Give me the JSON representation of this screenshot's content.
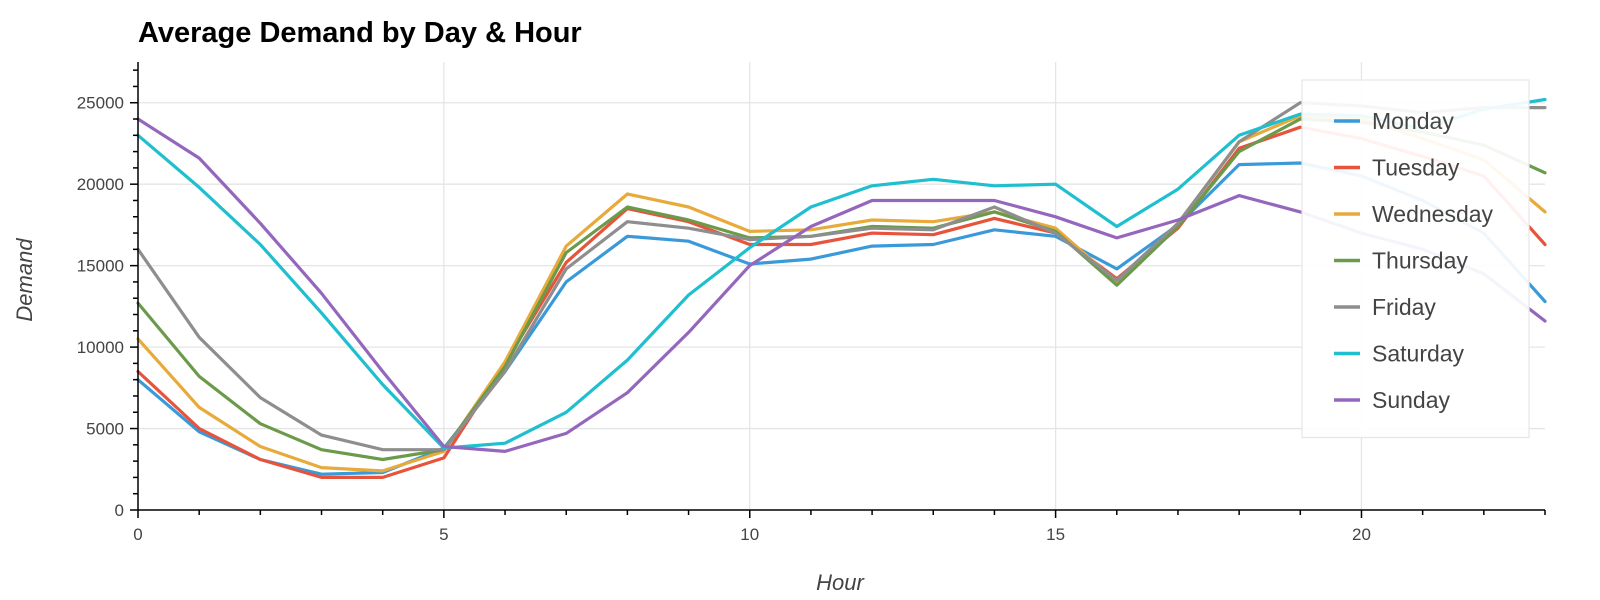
{
  "chart_data": {
    "type": "line",
    "title": "Average Demand by Day & Hour",
    "xlabel": "Hour",
    "ylabel": "Demand",
    "xlim": [
      0,
      23
    ],
    "ylim": [
      0,
      27500
    ],
    "x_ticks": [
      0,
      5,
      10,
      15,
      20
    ],
    "x_tick_labels": [
      "0",
      "5",
      "10",
      "15",
      "20"
    ],
    "y_ticks": [
      0,
      5000,
      10000,
      15000,
      20000,
      25000
    ],
    "y_tick_labels": [
      "0",
      "5000",
      "10000",
      "15000",
      "20000",
      "25000"
    ],
    "grid": true,
    "legend_position": "top-right",
    "x": [
      0,
      1,
      2,
      3,
      4,
      5,
      6,
      7,
      8,
      9,
      10,
      11,
      12,
      13,
      14,
      15,
      16,
      17,
      18,
      19,
      20,
      21,
      22,
      23
    ],
    "series": [
      {
        "name": "Monday",
        "color": "#3a9ad9",
        "values": [
          8000,
          4800,
          3100,
          2200,
          2300,
          3800,
          8500,
          14000,
          16800,
          16500,
          15100,
          15400,
          16200,
          16300,
          17200,
          16800,
          14800,
          17500,
          21200,
          21300,
          20500,
          19000,
          17000,
          12800
        ]
      },
      {
        "name": "Tuesday",
        "color": "#e8533b",
        "values": [
          8500,
          5000,
          3100,
          2000,
          2000,
          3200,
          9000,
          15200,
          18500,
          17700,
          16300,
          16300,
          17000,
          16900,
          17900,
          17000,
          14200,
          17300,
          22200,
          23500,
          22800,
          21700,
          20500,
          16300
        ]
      },
      {
        "name": "Wednesday",
        "color": "#e8aa3b",
        "values": [
          10500,
          6300,
          3900,
          2600,
          2400,
          3600,
          9100,
          16200,
          19400,
          18600,
          17100,
          17200,
          17800,
          17700,
          18300,
          17300,
          14000,
          17600,
          22600,
          24200,
          24000,
          22800,
          21500,
          18300
        ]
      },
      {
        "name": "Thursday",
        "color": "#6a9a4a",
        "values": [
          12700,
          8200,
          5300,
          3700,
          3100,
          3700,
          8800,
          15800,
          18600,
          17800,
          16700,
          16800,
          17400,
          17300,
          18300,
          17100,
          13800,
          17400,
          22000,
          24000,
          23800,
          23200,
          22400,
          20700
        ]
      },
      {
        "name": "Friday",
        "color": "#8e8e8e",
        "values": [
          16000,
          10600,
          6900,
          4600,
          3700,
          3700,
          8500,
          14800,
          17700,
          17300,
          16600,
          16800,
          17300,
          17200,
          18600,
          17000,
          14100,
          17600,
          22600,
          25000,
          24800,
          24400,
          24700,
          24700
        ]
      },
      {
        "name": "Saturday",
        "color": "#1fbfcf",
        "values": [
          23000,
          19800,
          16300,
          12100,
          7700,
          3800,
          4100,
          6000,
          9200,
          13200,
          16100,
          18600,
          19900,
          20300,
          19900,
          20000,
          17400,
          19700,
          23000,
          24300,
          24200,
          23400,
          24600,
          25200
        ]
      },
      {
        "name": "Sunday",
        "color": "#9467bd",
        "values": [
          24000,
          21600,
          17600,
          13300,
          8500,
          3900,
          3600,
          4700,
          7200,
          10900,
          15000,
          17400,
          19000,
          19000,
          19000,
          18000,
          16700,
          17800,
          19300,
          18300,
          17000,
          16000,
          14500,
          11600
        ]
      }
    ]
  }
}
